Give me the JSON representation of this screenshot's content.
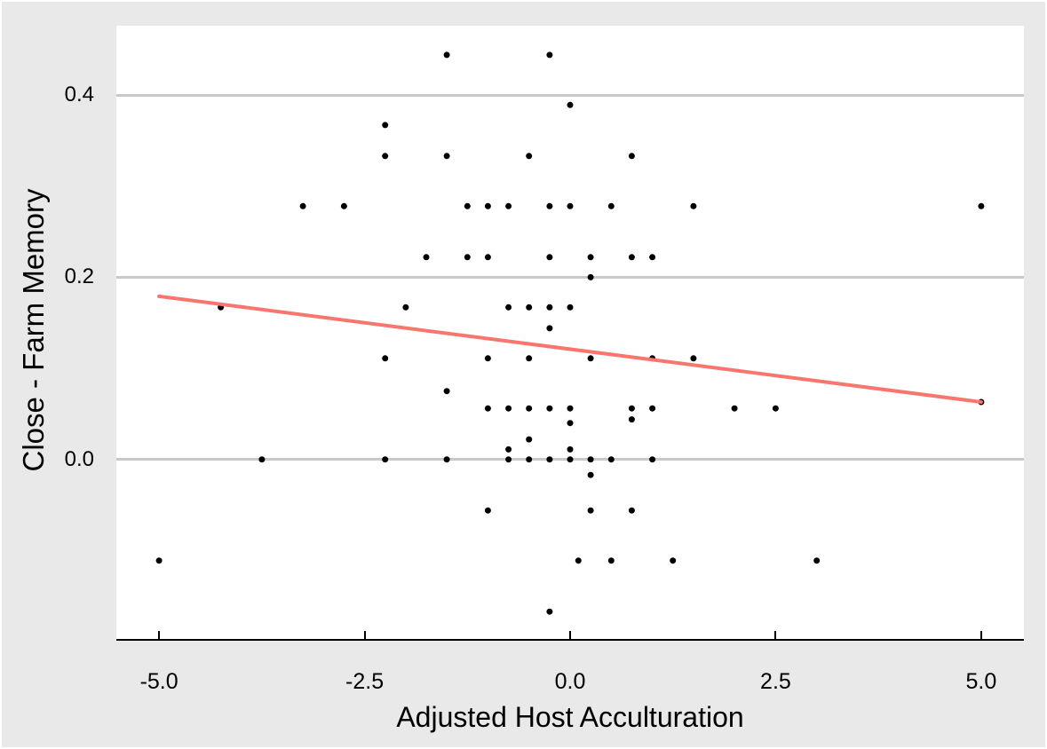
{
  "figure": {
    "background_color": "#e9e9e9",
    "panel_background_color": "#ffffff",
    "gridline_color": "#c9c9c9",
    "axis_line_color": "#000000",
    "text_color": "#000000",
    "point_color": "#000000",
    "trend_line_color": "#f8766d"
  },
  "chart_data": {
    "type": "scatter",
    "title": "",
    "xlabel": "Adjusted Host Acculturation",
    "ylabel": "Close - Farm Memory",
    "xlim": [
      -5.52,
      5.52
    ],
    "ylim": [
      -0.197,
      0.476
    ],
    "x_ticks": [
      {
        "value": -5.0,
        "label": "-5.0"
      },
      {
        "value": -2.5,
        "label": "-2.5"
      },
      {
        "value": 0.0,
        "label": "0.0"
      },
      {
        "value": 2.5,
        "label": "2.5"
      },
      {
        "value": 5.0,
        "label": "5.0"
      }
    ],
    "y_ticks": [
      {
        "value": 0.0,
        "label": "0.0"
      },
      {
        "value": 0.2,
        "label": "0.2"
      },
      {
        "value": 0.4,
        "label": "0.4"
      }
    ],
    "gridlines": "horizontal-major-only",
    "legend": "none",
    "points": [
      [
        -1.5,
        0.444
      ],
      [
        -0.25,
        0.444
      ],
      [
        0.0,
        0.389
      ],
      [
        -2.25,
        0.367
      ],
      [
        -2.25,
        0.333
      ],
      [
        -1.5,
        0.333
      ],
      [
        -0.5,
        0.333
      ],
      [
        0.75,
        0.333
      ],
      [
        -3.25,
        0.278
      ],
      [
        -2.75,
        0.278
      ],
      [
        -1.25,
        0.278
      ],
      [
        -1.0,
        0.278
      ],
      [
        -0.75,
        0.278
      ],
      [
        -0.25,
        0.278
      ],
      [
        0.0,
        0.278
      ],
      [
        0.5,
        0.278
      ],
      [
        1.5,
        0.278
      ],
      [
        5.0,
        0.278
      ],
      [
        -1.75,
        0.222
      ],
      [
        -1.25,
        0.222
      ],
      [
        -1.0,
        0.222
      ],
      [
        -0.25,
        0.222
      ],
      [
        0.25,
        0.222
      ],
      [
        0.75,
        0.222
      ],
      [
        1.0,
        0.222
      ],
      [
        0.25,
        0.2
      ],
      [
        -4.25,
        0.167
      ],
      [
        -2.0,
        0.167
      ],
      [
        -0.75,
        0.167
      ],
      [
        -0.5,
        0.167
      ],
      [
        -0.25,
        0.167
      ],
      [
        0.0,
        0.167
      ],
      [
        -0.25,
        0.144
      ],
      [
        -2.25,
        0.111
      ],
      [
        -1.0,
        0.111
      ],
      [
        -0.5,
        0.111
      ],
      [
        0.25,
        0.111
      ],
      [
        1.0,
        0.111
      ],
      [
        1.5,
        0.111
      ],
      [
        -1.5,
        0.075
      ],
      [
        5.0,
        0.063
      ],
      [
        -1.0,
        0.056
      ],
      [
        -0.75,
        0.056
      ],
      [
        -0.5,
        0.056
      ],
      [
        -0.25,
        0.056
      ],
      [
        0.0,
        0.056
      ],
      [
        0.75,
        0.056
      ],
      [
        1.0,
        0.056
      ],
      [
        2.0,
        0.056
      ],
      [
        2.5,
        0.056
      ],
      [
        0.75,
        0.044
      ],
      [
        0.0,
        0.04
      ],
      [
        -0.5,
        0.022
      ],
      [
        -0.75,
        0.011
      ],
      [
        0.0,
        0.011
      ],
      [
        -3.75,
        0.0
      ],
      [
        -2.25,
        0.0
      ],
      [
        -1.5,
        0.0
      ],
      [
        -0.75,
        0.0
      ],
      [
        -0.5,
        0.0
      ],
      [
        -0.25,
        0.0
      ],
      [
        0.0,
        0.0
      ],
      [
        0.25,
        0.0
      ],
      [
        0.5,
        0.0
      ],
      [
        1.0,
        0.0
      ],
      [
        0.25,
        -0.017
      ],
      [
        -1.0,
        -0.056
      ],
      [
        0.25,
        -0.056
      ],
      [
        0.75,
        -0.056
      ],
      [
        -5.0,
        -0.111
      ],
      [
        0.1,
        -0.111
      ],
      [
        0.5,
        -0.111
      ],
      [
        1.25,
        -0.111
      ],
      [
        3.0,
        -0.111
      ],
      [
        -0.25,
        -0.167
      ]
    ],
    "trend_line": {
      "type": "linear",
      "x_start": -5.0,
      "y_start": 0.179,
      "x_end": 5.0,
      "y_end": 0.063,
      "color": "#f8766d"
    }
  }
}
